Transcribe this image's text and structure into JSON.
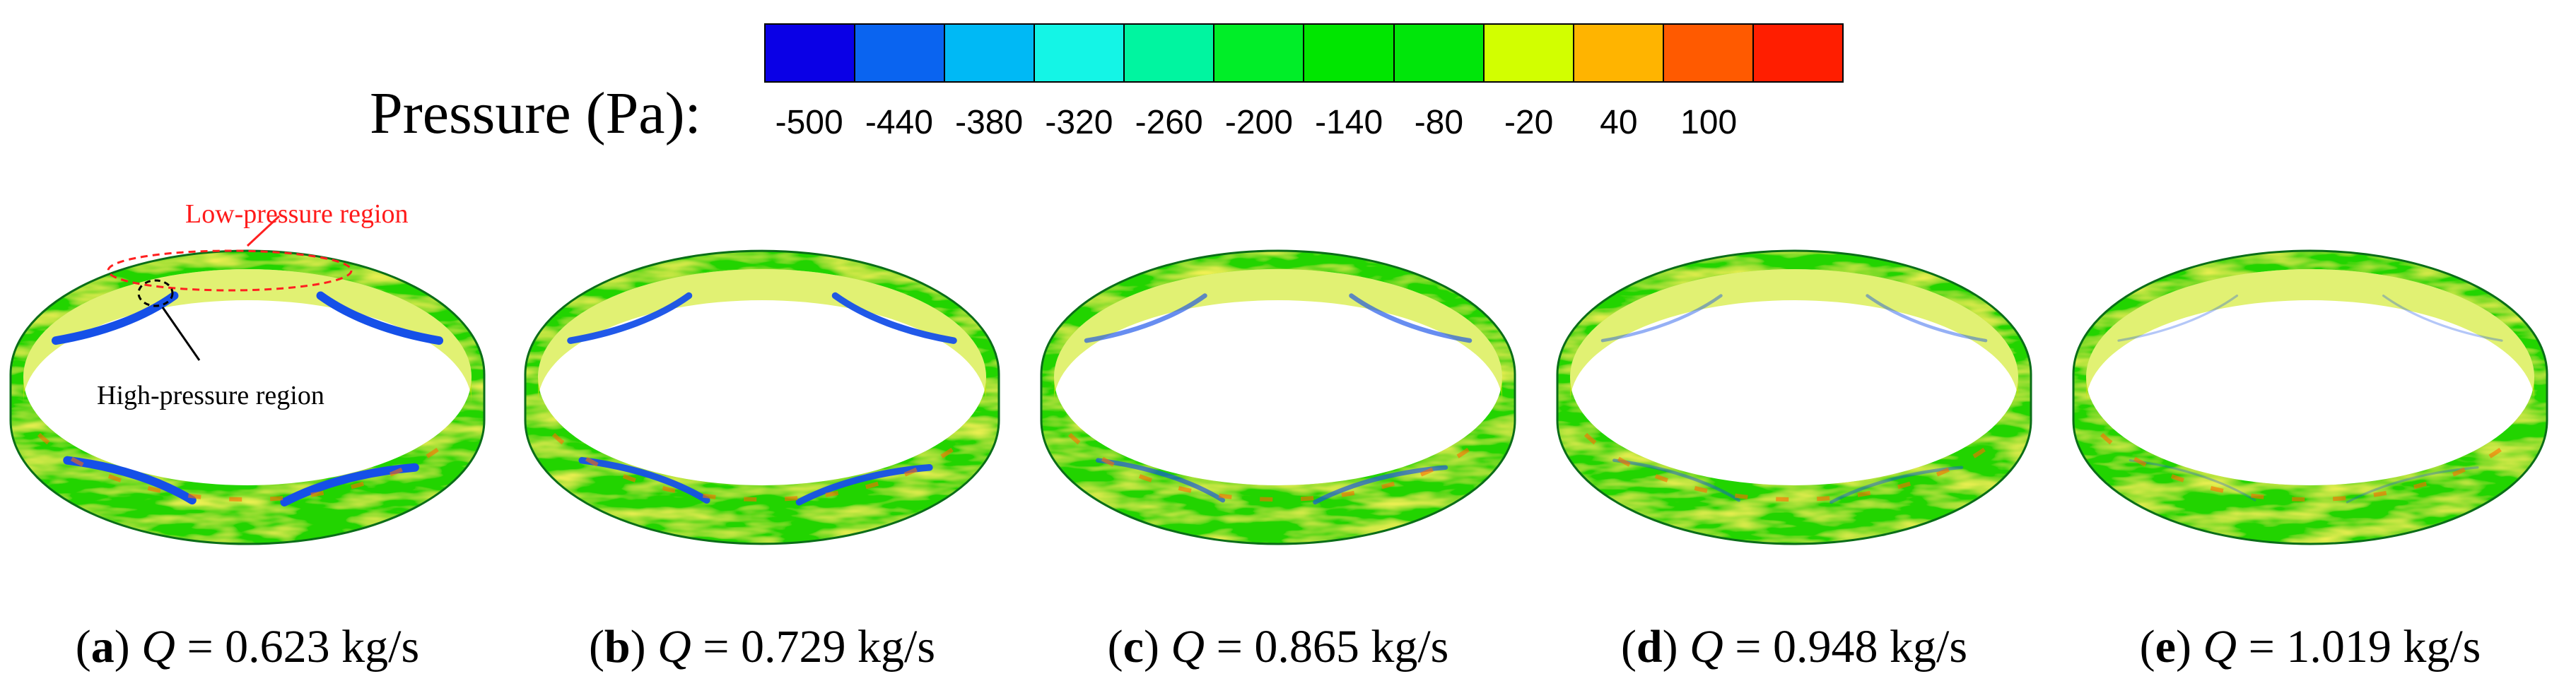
{
  "legend": {
    "title": "Pressure (Pa):",
    "ticks": [
      "-500",
      "-440",
      "-380",
      "-320",
      "-260",
      "-200",
      "-140",
      "-80",
      "-20",
      "40",
      "100"
    ],
    "colors": [
      "#0a00e6",
      "#0a64f0",
      "#00b9f5",
      "#14f5e6",
      "#00f5a0",
      "#00ee28",
      "#00e600",
      "#00e60a",
      "#d2ff00",
      "#ffb400",
      "#ff5a00",
      "#ff1e00"
    ]
  },
  "annotations": {
    "low": "Low-pressure region",
    "high": "High-pressure region"
  },
  "panels": [
    {
      "label": "a",
      "q": "Q",
      "value": "= 0.623 kg/s",
      "blue_level": 1.0
    },
    {
      "label": "b",
      "q": "Q",
      "value": "= 0.729 kg/s",
      "blue_level": 0.75
    },
    {
      "label": "c",
      "q": "Q",
      "value": "= 0.865 kg/s",
      "blue_level": 0.45
    },
    {
      "label": "d",
      "q": "Q",
      "value": "= 0.948 kg/s",
      "blue_level": 0.25
    },
    {
      "label": "e",
      "q": "Q",
      "value": "= 1.019 kg/s",
      "blue_level": 0.12
    }
  ]
}
